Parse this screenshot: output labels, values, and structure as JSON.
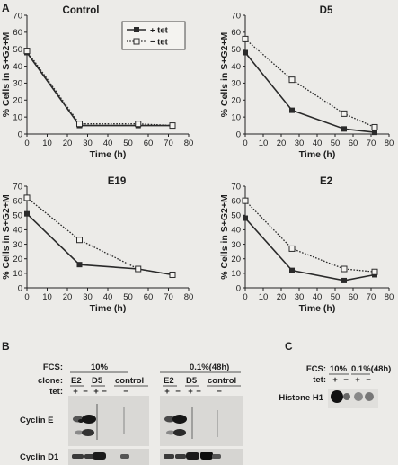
{
  "panel_labels": [
    "A",
    "B",
    "C"
  ],
  "chart_data": [
    {
      "type": "line",
      "title": "Control",
      "xlabel": "Time (h)",
      "ylabel": "% Cells in S+G2+M",
      "xlim": [
        0,
        80
      ],
      "ylim": [
        0,
        70
      ],
      "xticks": [
        0,
        10,
        20,
        30,
        40,
        50,
        60,
        70,
        80
      ],
      "yticks": [
        0,
        10,
        20,
        30,
        40,
        50,
        60,
        70
      ],
      "legend": "top-right",
      "series": [
        {
          "name": "+ tet",
          "style": "solid",
          "x": [
            0,
            26,
            55,
            72
          ],
          "y": [
            48,
            5,
            5,
            5
          ]
        },
        {
          "name": "− tet",
          "style": "dotted",
          "x": [
            0,
            26,
            55,
            72
          ],
          "y": [
            49,
            6,
            6,
            5
          ]
        }
      ]
    },
    {
      "type": "line",
      "title": "D5",
      "xlabel": "Time (h)",
      "ylabel": "% Cells in S+G2+M",
      "xlim": [
        0,
        80
      ],
      "ylim": [
        0,
        70
      ],
      "xticks": [
        0,
        10,
        20,
        30,
        40,
        50,
        60,
        70,
        80
      ],
      "yticks": [
        0,
        10,
        20,
        30,
        40,
        50,
        60,
        70
      ],
      "series": [
        {
          "name": "+ tet",
          "style": "solid",
          "x": [
            0,
            26,
            55,
            72
          ],
          "y": [
            48,
            14,
            3,
            1
          ]
        },
        {
          "name": "− tet",
          "style": "dotted",
          "x": [
            0,
            26,
            55,
            72
          ],
          "y": [
            56,
            32,
            12,
            4
          ]
        }
      ]
    },
    {
      "type": "line",
      "title": "E19",
      "xlabel": "Time (h)",
      "ylabel": "% Cells in S+G2+M",
      "xlim": [
        0,
        80
      ],
      "ylim": [
        0,
        70
      ],
      "xticks": [
        0,
        10,
        20,
        30,
        40,
        50,
        60,
        70,
        80
      ],
      "yticks": [
        0,
        10,
        20,
        30,
        40,
        50,
        60,
        70
      ],
      "series": [
        {
          "name": "+ tet",
          "style": "solid",
          "x": [
            0,
            26,
            55,
            72
          ],
          "y": [
            51,
            16,
            13,
            9
          ]
        },
        {
          "name": "− tet",
          "style": "dotted",
          "x": [
            0,
            26,
            55,
            72
          ],
          "y": [
            62,
            33,
            13,
            9
          ]
        }
      ]
    },
    {
      "type": "line",
      "title": "E2",
      "xlabel": "Time (h)",
      "ylabel": "% Cells in S+G2+M",
      "xlim": [
        0,
        80
      ],
      "ylim": [
        0,
        70
      ],
      "xticks": [
        0,
        10,
        20,
        30,
        40,
        50,
        60,
        70,
        80
      ],
      "yticks": [
        0,
        10,
        20,
        30,
        40,
        50,
        60,
        70
      ],
      "series": [
        {
          "name": "+ tet",
          "style": "solid",
          "x": [
            0,
            26,
            55,
            72
          ],
          "y": [
            48,
            12,
            5,
            9
          ]
        },
        {
          "name": "− tet",
          "style": "dotted",
          "x": [
            0,
            26,
            55,
            72
          ],
          "y": [
            60,
            27,
            13,
            11
          ]
        }
      ]
    }
  ],
  "blot_b": {
    "fcs_label": "FCS:",
    "clone_label": "clone:",
    "tet_label": "tet:",
    "conditions": [
      "10%",
      "0.1%(48h)"
    ],
    "clones": [
      "E2",
      "D5",
      "control"
    ],
    "tet_signs": [
      "+",
      "−"
    ],
    "rows": [
      "Cyclin E",
      "Cyclin D1"
    ]
  },
  "blot_c": {
    "fcs_label": "FCS:",
    "tet_label": "tet:",
    "conditions": [
      "10%",
      "0.1%(48h)"
    ],
    "tet_signs": [
      "+",
      "−"
    ],
    "rows": [
      "Histone H1"
    ]
  }
}
